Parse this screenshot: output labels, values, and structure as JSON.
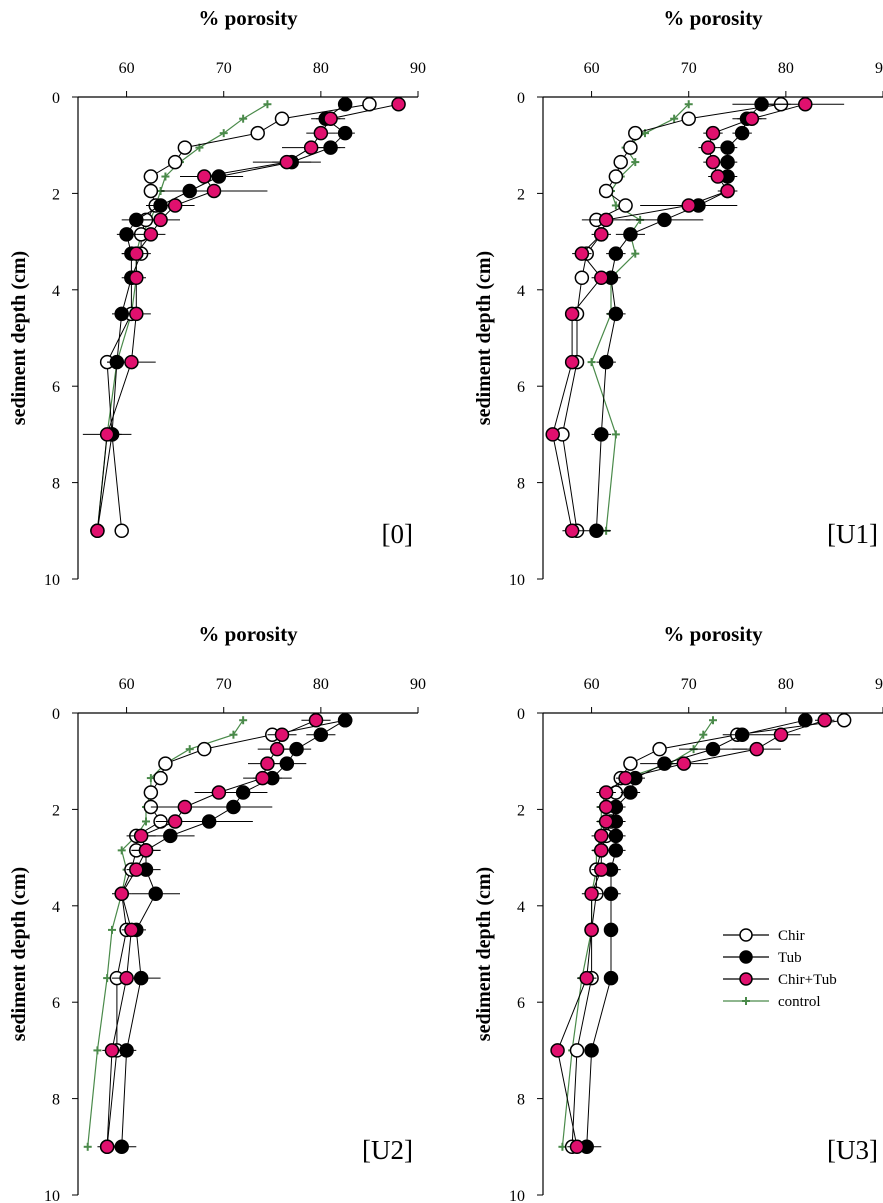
{
  "figure": {
    "legend_title": ""
  },
  "legend": [
    {
      "series": "Chir",
      "label": "Chir",
      "marker": "open-circle"
    },
    {
      "series": "Tub",
      "label": "Tub",
      "marker": "filled-circle"
    },
    {
      "series": "Chir+Tub",
      "label": "Chir+Tub",
      "marker": "magenta-circle"
    },
    {
      "series": "control",
      "label": "control",
      "marker": "plus"
    }
  ],
  "colors": {
    "chir_face": "#ffffff",
    "tub_face": "#000000",
    "chirtub_face": "#e0106e",
    "control": "#4a8a4a",
    "axis": "#000000"
  },
  "chart_data": [
    {
      "type": "line",
      "panel_label": "[0]",
      "title": "% porosity",
      "ylabel": "sediment depth (cm)",
      "xlim": [
        55,
        90
      ],
      "ylim": [
        0,
        10
      ],
      "y_inverted": true,
      "x_ticks": [
        60,
        70,
        80,
        90
      ],
      "y_ticks": [
        0,
        2,
        4,
        6,
        8,
        10
      ],
      "series": [
        {
          "name": "Chir",
          "depth": [
            0.15,
            0.45,
            0.75,
            1.05,
            1.35,
            1.65,
            1.95,
            2.25,
            2.55,
            2.85,
            3.25,
            3.75,
            4.5,
            5.5,
            7.0,
            9.0
          ],
          "porosity": [
            85.0,
            76.0,
            73.5,
            66.0,
            65.0,
            62.5,
            62.5,
            63.0,
            62.0,
            61.5,
            61.5,
            60.5,
            60.5,
            58.0,
            58.5,
            59.5
          ]
        },
        {
          "name": "Tub",
          "depth": [
            0.15,
            0.45,
            0.75,
            1.05,
            1.35,
            1.65,
            1.95,
            2.25,
            2.55,
            2.85,
            3.25,
            3.75,
            4.5,
            5.5,
            7.0,
            9.0
          ],
          "porosity": [
            82.5,
            80.5,
            82.5,
            81.0,
            77.0,
            69.5,
            66.5,
            63.5,
            61.0,
            60.0,
            60.5,
            60.5,
            59.5,
            59.0,
            58.5,
            57.0
          ],
          "err": [
            0.5,
            1.5,
            1.0,
            1.5,
            2.0,
            2.5,
            1.5,
            1.5,
            1.5,
            1.0,
            1.0,
            1.0,
            1.0,
            1.0,
            1.0,
            0.5
          ]
        },
        {
          "name": "Chir+Tub",
          "depth": [
            0.15,
            0.45,
            0.75,
            1.05,
            1.35,
            1.65,
            1.95,
            2.25,
            2.55,
            2.85,
            3.25,
            3.75,
            4.5,
            5.5,
            7.0,
            9.0
          ],
          "porosity": [
            88.0,
            81.0,
            80.0,
            79.0,
            76.5,
            68.0,
            69.0,
            65.0,
            63.5,
            62.5,
            61.0,
            61.0,
            61.0,
            60.5,
            58.0,
            57.0
          ],
          "err": [
            0.5,
            1.5,
            1.5,
            3.0,
            3.5,
            2.5,
            5.5,
            2.0,
            2.0,
            1.5,
            1.5,
            1.0,
            1.5,
            2.5,
            2.5,
            0.5
          ]
        },
        {
          "name": "control",
          "depth": [
            0.15,
            0.45,
            0.75,
            1.05,
            1.35,
            1.65,
            1.95,
            2.25,
            2.55,
            2.85,
            3.25,
            3.75,
            4.5,
            5.5,
            7.0,
            9.0
          ],
          "porosity": [
            74.5,
            72.0,
            70.0,
            67.5,
            65.5,
            64.0,
            63.5,
            63.0,
            62.5,
            61.5,
            61.0,
            61.0,
            60.5,
            59.0,
            58.0,
            57.0
          ]
        }
      ]
    },
    {
      "type": "line",
      "panel_label": "[U1]",
      "title": "% porosity",
      "ylabel": "sediment depth (cm)",
      "xlim": [
        55,
        90
      ],
      "ylim": [
        0,
        10
      ],
      "y_inverted": true,
      "x_ticks": [
        60,
        70,
        80,
        90
      ],
      "y_ticks": [
        0,
        2,
        4,
        6,
        8,
        10
      ],
      "series": [
        {
          "name": "Chir",
          "depth": [
            0.15,
            0.45,
            0.75,
            1.05,
            1.35,
            1.65,
            1.95,
            2.25,
            2.55,
            2.85,
            3.25,
            3.75,
            4.5,
            5.5,
            7.0,
            9.0
          ],
          "porosity": [
            79.5,
            70.0,
            64.5,
            64.0,
            63.0,
            62.5,
            61.5,
            63.5,
            60.5,
            61.0,
            59.5,
            59.0,
            58.5,
            58.5,
            57.0,
            58.5
          ]
        },
        {
          "name": "Tub",
          "depth": [
            0.15,
            0.45,
            0.75,
            1.05,
            1.35,
            1.65,
            1.95,
            2.25,
            2.55,
            2.85,
            3.25,
            3.75,
            4.5,
            5.5,
            7.0,
            9.0
          ],
          "porosity": [
            77.5,
            76.0,
            75.5,
            74.0,
            74.0,
            74.0,
            74.0,
            71.0,
            67.5,
            64.0,
            62.5,
            62.0,
            62.5,
            61.5,
            61.0,
            60.5
          ],
          "err": [
            3.0,
            1.5,
            1.0,
            1.0,
            1.0,
            1.0,
            1.0,
            3.5,
            4.0,
            1.5,
            1.0,
            1.0,
            1.0,
            1.0,
            1.0,
            1.5
          ]
        },
        {
          "name": "Chir+Tub",
          "depth": [
            0.15,
            0.45,
            0.75,
            1.05,
            1.35,
            1.65,
            1.95,
            2.25,
            2.55,
            2.85,
            3.25,
            3.75,
            4.5,
            5.5,
            7.0,
            9.0
          ],
          "porosity": [
            82.0,
            76.5,
            72.5,
            72.0,
            72.5,
            73.0,
            74.0,
            70.0,
            61.5,
            61.0,
            59.0,
            61.0,
            58.0,
            58.0,
            56.0,
            58.0
          ],
          "err": [
            4.0,
            1.5,
            1.0,
            1.0,
            1.0,
            1.0,
            1.0,
            5.0,
            2.5,
            1.0,
            1.0,
            1.0,
            0.5,
            0.5,
            0.5,
            1.0
          ]
        },
        {
          "name": "control",
          "depth": [
            0.15,
            0.45,
            0.75,
            1.05,
            1.35,
            1.65,
            1.95,
            2.25,
            2.55,
            2.85,
            3.25,
            3.75,
            4.5,
            5.5,
            7.0,
            9.0
          ],
          "porosity": [
            70.0,
            68.5,
            65.5,
            63.5,
            64.5,
            63.0,
            62.0,
            62.5,
            65.0,
            64.0,
            64.5,
            62.0,
            62.0,
            60.0,
            62.5,
            61.5
          ]
        }
      ]
    },
    {
      "type": "line",
      "panel_label": "[U2]",
      "title": "% porosity",
      "ylabel": "sediment depth (cm)",
      "xlim": [
        55,
        90
      ],
      "ylim": [
        0,
        10
      ],
      "y_inverted": true,
      "x_ticks": [
        60,
        70,
        80,
        90
      ],
      "y_ticks": [
        0,
        2,
        4,
        6,
        8,
        10
      ],
      "series": [
        {
          "name": "Chir",
          "depth": [
            0.15,
            0.45,
            0.75,
            1.05,
            1.35,
            1.65,
            1.95,
            2.25,
            2.55,
            2.85,
            3.25,
            3.75,
            4.5,
            5.5,
            7.0,
            9.0
          ],
          "porosity": [
            82.5,
            75.0,
            68.0,
            64.0,
            63.5,
            62.5,
            62.5,
            63.5,
            61.0,
            61.0,
            60.5,
            59.5,
            60.0,
            59.0,
            59.0,
            58.0
          ]
        },
        {
          "name": "Tub",
          "depth": [
            0.15,
            0.45,
            0.75,
            1.05,
            1.35,
            1.65,
            1.95,
            2.25,
            2.55,
            2.85,
            3.25,
            3.75,
            4.5,
            5.5,
            7.0,
            9.0
          ],
          "porosity": [
            82.5,
            80.0,
            77.5,
            76.5,
            75.0,
            72.0,
            71.0,
            68.5,
            64.5,
            62.0,
            62.0,
            63.0,
            61.0,
            61.5,
            60.0,
            59.5
          ],
          "err": [
            0.5,
            1.5,
            1.5,
            2.0,
            2.0,
            2.5,
            4.0,
            4.5,
            2.5,
            1.5,
            1.5,
            2.5,
            1.0,
            2.0,
            1.0,
            1.5
          ]
        },
        {
          "name": "Chir+Tub",
          "depth": [
            0.15,
            0.45,
            0.75,
            1.05,
            1.35,
            1.65,
            1.95,
            2.25,
            2.55,
            2.85,
            3.25,
            3.75,
            4.5,
            5.5,
            7.0,
            9.0
          ],
          "porosity": [
            79.5,
            76.0,
            75.5,
            74.5,
            74.0,
            69.5,
            66.0,
            65.0,
            61.5,
            62.0,
            61.0,
            59.5,
            60.5,
            60.0,
            58.5,
            58.0
          ],
          "err": [
            1.5,
            1.5,
            2.0,
            2.0,
            2.0,
            2.5,
            3.5,
            2.0,
            1.5,
            1.5,
            1.0,
            1.0,
            1.0,
            1.5,
            1.0,
            1.0
          ]
        },
        {
          "name": "control",
          "depth": [
            0.15,
            0.45,
            0.75,
            1.05,
            1.35,
            1.65,
            1.95,
            2.25,
            2.55,
            2.85,
            3.25,
            3.75,
            4.5,
            5.5,
            7.0,
            9.0
          ],
          "porosity": [
            72.0,
            71.0,
            66.5,
            64.0,
            62.5,
            62.5,
            62.0,
            62.0,
            61.0,
            59.5,
            60.0,
            59.5,
            58.5,
            58.0,
            57.0,
            56.0
          ]
        }
      ]
    },
    {
      "type": "line",
      "panel_label": "[U3]",
      "title": "% porosity",
      "ylabel": "sediment depth (cm)",
      "xlim": [
        55,
        90
      ],
      "ylim": [
        0,
        10
      ],
      "y_inverted": true,
      "x_ticks": [
        60,
        70,
        80,
        90
      ],
      "y_ticks": [
        0,
        2,
        4,
        6,
        8,
        10
      ],
      "series": [
        {
          "name": "Chir",
          "depth": [
            0.15,
            0.45,
            0.75,
            1.05,
            1.35,
            1.65,
            1.95,
            2.25,
            2.55,
            2.85,
            3.25,
            3.75,
            4.5,
            5.5,
            7.0,
            9.0
          ],
          "porosity": [
            86.0,
            75.0,
            67.0,
            64.0,
            63.0,
            62.5,
            62.5,
            62.0,
            61.5,
            61.0,
            60.5,
            60.5,
            60.0,
            60.0,
            58.5,
            58.0
          ]
        },
        {
          "name": "Tub",
          "depth": [
            0.15,
            0.45,
            0.75,
            1.05,
            1.35,
            1.65,
            1.95,
            2.25,
            2.55,
            2.85,
            3.25,
            3.75,
            4.5,
            5.5,
            7.0,
            9.0
          ],
          "porosity": [
            82.0,
            75.5,
            72.5,
            67.5,
            64.5,
            64.0,
            62.5,
            62.5,
            62.5,
            62.5,
            62.0,
            62.0,
            62.0,
            62.0,
            60.0,
            59.5
          ],
          "err": [
            0.5,
            2.0,
            3.5,
            2.5,
            1.0,
            1.0,
            1.0,
            1.0,
            1.0,
            1.0,
            1.0,
            1.0,
            0.5,
            0.5,
            0.5,
            1.5
          ]
        },
        {
          "name": "Chir+Tub",
          "depth": [
            0.15,
            0.45,
            0.75,
            1.05,
            1.35,
            1.65,
            1.95,
            2.25,
            2.55,
            2.85,
            3.25,
            3.75,
            4.5,
            5.5,
            7.0,
            9.0
          ],
          "porosity": [
            84.0,
            79.5,
            77.0,
            69.5,
            63.5,
            61.5,
            61.5,
            61.5,
            61.0,
            61.0,
            61.0,
            60.0,
            60.0,
            59.5,
            56.5,
            58.5
          ],
          "err": [
            1.0,
            2.0,
            2.5,
            2.5,
            1.0,
            1.0,
            1.0,
            1.0,
            1.0,
            1.0,
            1.0,
            1.0,
            0.5,
            1.0,
            0.5,
            1.0
          ]
        },
        {
          "name": "control",
          "depth": [
            0.15,
            0.45,
            0.75,
            1.05,
            1.35,
            1.65,
            1.95,
            2.25,
            2.55,
            2.85,
            3.25,
            3.75,
            4.5,
            5.5,
            7.0,
            9.0
          ],
          "porosity": [
            72.5,
            71.5,
            70.5,
            68.0,
            63.5,
            61.5,
            61.0,
            61.0,
            61.0,
            60.5,
            60.5,
            60.0,
            60.0,
            59.0,
            58.0,
            57.0
          ]
        }
      ]
    }
  ]
}
